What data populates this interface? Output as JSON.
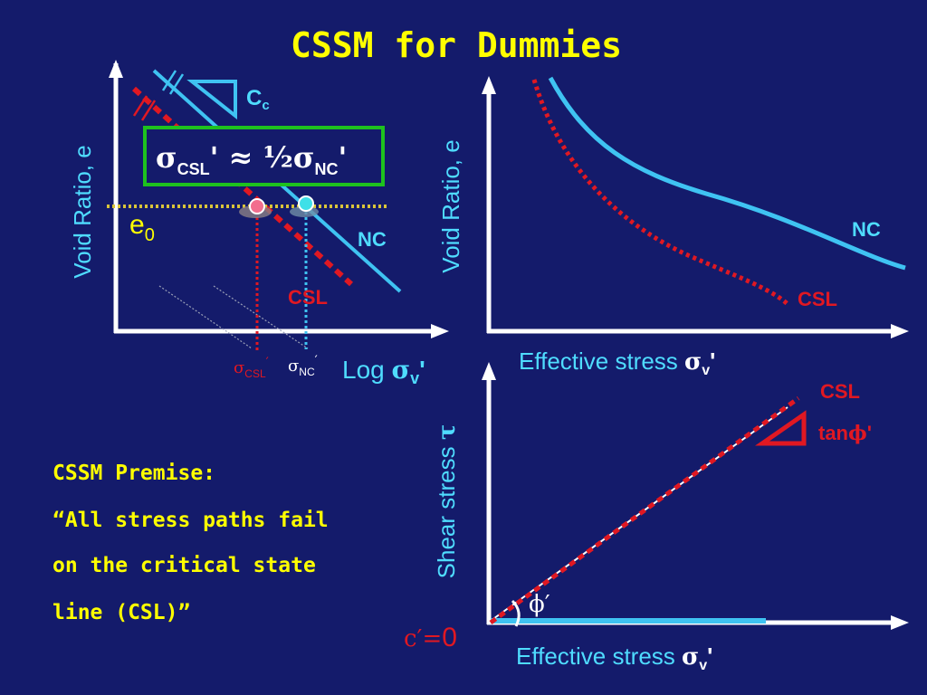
{
  "title": "CSSM for Dummies",
  "colors": {
    "background": "#141b6b",
    "title": "#ffff00",
    "axis": "#ffffff",
    "nc_line": "#3fc3f2",
    "csl_line": "#e01822",
    "box_border": "#1ec21e",
    "label_cyan": "#4fdcff",
    "e0_line": "#d9c43a"
  },
  "panel_elog": {
    "ylabel": "Void Ratio, e",
    "xlabel_prefix": "Log ",
    "xlabel_sigma": "σ",
    "xlabel_sub": "v",
    "xlabel_prime": "'",
    "cc_main": "C",
    "cc_sub": "c",
    "relation_box": {
      "sigma1": "σ",
      "sub1": "CSL",
      "prime1": "'",
      "approx": " ≈ ½",
      "sigma2": "σ",
      "sub2": "NC",
      "prime2": "'"
    },
    "e0_main": "e",
    "e0_sub": "0",
    "nc_label": "NC",
    "csl_label": "CSL",
    "tick_csl_sigma": "σ",
    "tick_csl_sub": "CSL",
    "tick_csl_prime": "′",
    "tick_nc_sigma": "σ",
    "tick_nc_sub": "NC",
    "tick_nc_prime": "′"
  },
  "panel_estress": {
    "ylabel": "Void Ratio, e",
    "xlabel_prefix": "Effective stress ",
    "xlabel_sigma": "σ",
    "xlabel_sub": "v",
    "xlabel_prime": "'",
    "nc_label": "NC",
    "csl_label": "CSL"
  },
  "panel_shear": {
    "ylabel_prefix": "Shear stress ",
    "ylabel_tau": "τ",
    "xlabel_prefix": "Effective stress ",
    "xlabel_sigma": "σ",
    "xlabel_sub": "v",
    "xlabel_prime": "'",
    "csl_label": "CSL",
    "tan_prefix": "tan",
    "tan_phi": "ϕ",
    "tan_prime": "'",
    "phi_label": "ϕ′",
    "c_label": "c′=",
    "c_value": "0"
  },
  "premise": {
    "line1": "CSSM Premise:",
    "line2": "“All stress paths fail",
    "line3": "on the critical state",
    "line4": "line (CSL)”"
  }
}
